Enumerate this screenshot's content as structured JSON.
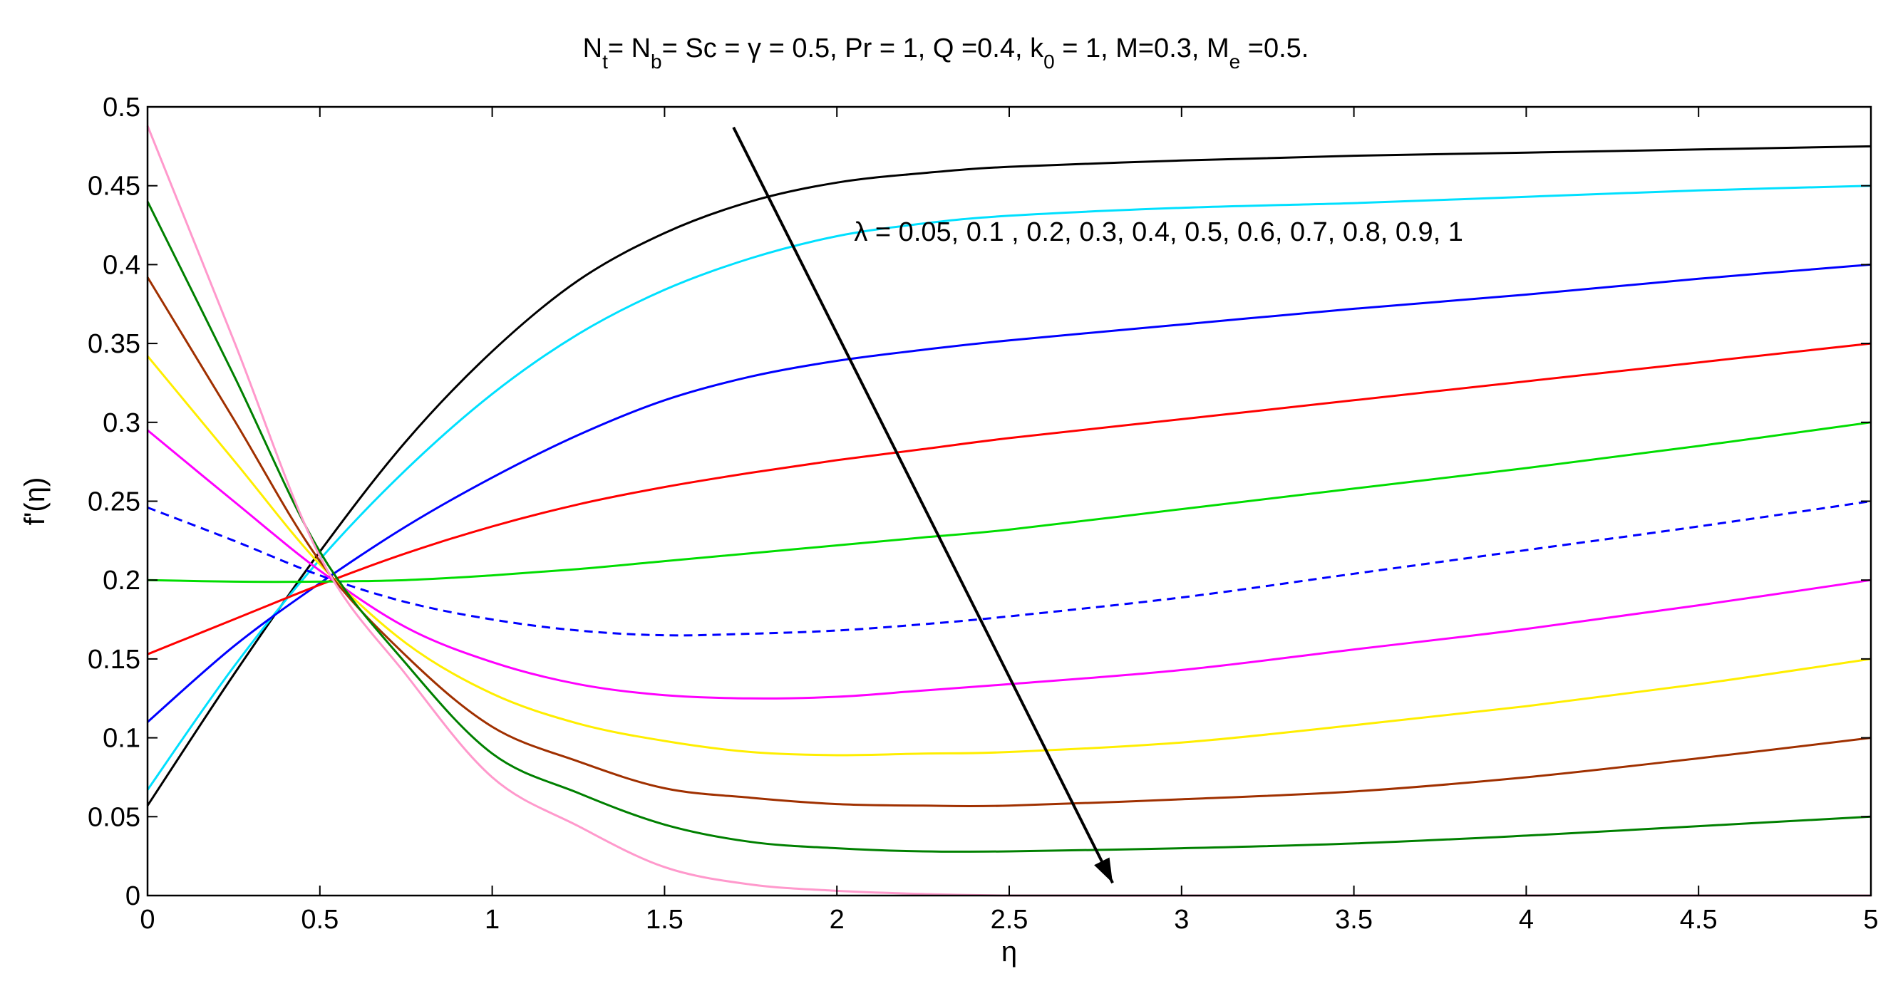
{
  "chart_data": {
    "type": "line",
    "title": "N_t= N_b= Sc = γ = 0.5, Pr =  1, Q =0.4, k_0 = 1, M=0.3, M_e =0.5.",
    "title_parts": [
      "N",
      "t",
      "= N",
      "b",
      "= Sc = γ = 0.5, Pr =  1, Q =0.4, k",
      "0",
      " = 1, M=0.3, M",
      "e",
      " =0.5."
    ],
    "xlabel": "η",
    "ylabel": "f'(η)",
    "xlim": [
      0,
      5
    ],
    "ylim": [
      0,
      0.5
    ],
    "xticks": [
      "0",
      "0.5",
      "1",
      "1.5",
      "2",
      "2.5",
      "3",
      "3.5",
      "4",
      "4.5",
      "5"
    ],
    "yticks": [
      "0",
      "0.05",
      "0.1",
      "0.15",
      "0.2",
      "0.25",
      "0.3",
      "0.35",
      "0.4",
      "0.45",
      "0.5"
    ],
    "grid": false,
    "annotation": {
      "text": "λ = 0.05, 0.1 , 0.2, 0.3, 0.4, 0.5, 0.6, 0.7, 0.8, 0.9, 1",
      "arrow_from": [
        1.7,
        0.487
      ],
      "arrow_to": [
        2.8,
        0.008
      ],
      "text_at": [
        2.05,
        0.415
      ]
    },
    "x": [
      0,
      0.25,
      0.5,
      0.75,
      1,
      1.25,
      1.5,
      1.75,
      2,
      2.25,
      2.5,
      3,
      3.5,
      4,
      4.5,
      5
    ],
    "series": [
      {
        "color": "#000000",
        "dashed": false,
        "values": [
          0.057,
          0.14,
          0.218,
          0.288,
          0.345,
          0.39,
          0.42,
          0.44,
          0.452,
          0.458,
          0.462,
          0.466,
          0.469,
          0.471,
          0.473,
          0.475
        ]
      },
      {
        "color": "#00e0ff",
        "dashed": false,
        "values": [
          0.067,
          0.145,
          0.213,
          0.27,
          0.318,
          0.356,
          0.384,
          0.404,
          0.418,
          0.426,
          0.431,
          0.436,
          0.439,
          0.443,
          0.447,
          0.45
        ]
      },
      {
        "color": "#0000ff",
        "dashed": false,
        "values": [
          0.11,
          0.158,
          0.198,
          0.234,
          0.265,
          0.292,
          0.314,
          0.329,
          0.339,
          0.346,
          0.352,
          0.362,
          0.372,
          0.381,
          0.391,
          0.4
        ]
      },
      {
        "color": "#ff0000",
        "dashed": false,
        "values": [
          0.153,
          0.175,
          0.197,
          0.217,
          0.234,
          0.248,
          0.259,
          0.268,
          0.276,
          0.283,
          0.29,
          0.302,
          0.314,
          0.326,
          0.338,
          0.35
        ]
      },
      {
        "color": "#00dd00",
        "dashed": false,
        "values": [
          0.2,
          0.199,
          0.199,
          0.2,
          0.203,
          0.207,
          0.212,
          0.217,
          0.222,
          0.227,
          0.232,
          0.245,
          0.258,
          0.271,
          0.285,
          0.3
        ]
      },
      {
        "color": "#0000ff",
        "dashed": true,
        "values": [
          0.246,
          0.225,
          0.203,
          0.186,
          0.175,
          0.168,
          0.165,
          0.166,
          0.168,
          0.172,
          0.177,
          0.189,
          0.204,
          0.219,
          0.234,
          0.25
        ]
      },
      {
        "color": "#ff00ff",
        "dashed": false,
        "values": [
          0.295,
          0.25,
          0.206,
          0.17,
          0.148,
          0.134,
          0.127,
          0.125,
          0.126,
          0.13,
          0.134,
          0.143,
          0.156,
          0.169,
          0.184,
          0.2
        ]
      },
      {
        "color": "#ffee00",
        "dashed": false,
        "values": [
          0.342,
          0.276,
          0.21,
          0.16,
          0.128,
          0.109,
          0.098,
          0.091,
          0.089,
          0.09,
          0.091,
          0.097,
          0.108,
          0.12,
          0.134,
          0.15
        ]
      },
      {
        "color": "#a03000",
        "dashed": false,
        "values": [
          0.392,
          0.302,
          0.212,
          0.152,
          0.107,
          0.085,
          0.068,
          0.062,
          0.058,
          0.057,
          0.057,
          0.061,
          0.066,
          0.075,
          0.087,
          0.1
        ]
      },
      {
        "color": "#008000",
        "dashed": false,
        "values": [
          0.44,
          0.33,
          0.218,
          0.147,
          0.09,
          0.065,
          0.045,
          0.034,
          0.03,
          0.028,
          0.028,
          0.03,
          0.033,
          0.038,
          0.044,
          0.05
        ]
      },
      {
        "color": "#ff99cc",
        "dashed": false,
        "values": [
          0.488,
          0.352,
          0.215,
          0.14,
          0.075,
          0.044,
          0.018,
          0.007,
          0.003,
          0.001,
          0.0,
          0.0,
          0.0,
          0.0,
          0.0,
          0.0
        ]
      }
    ]
  }
}
